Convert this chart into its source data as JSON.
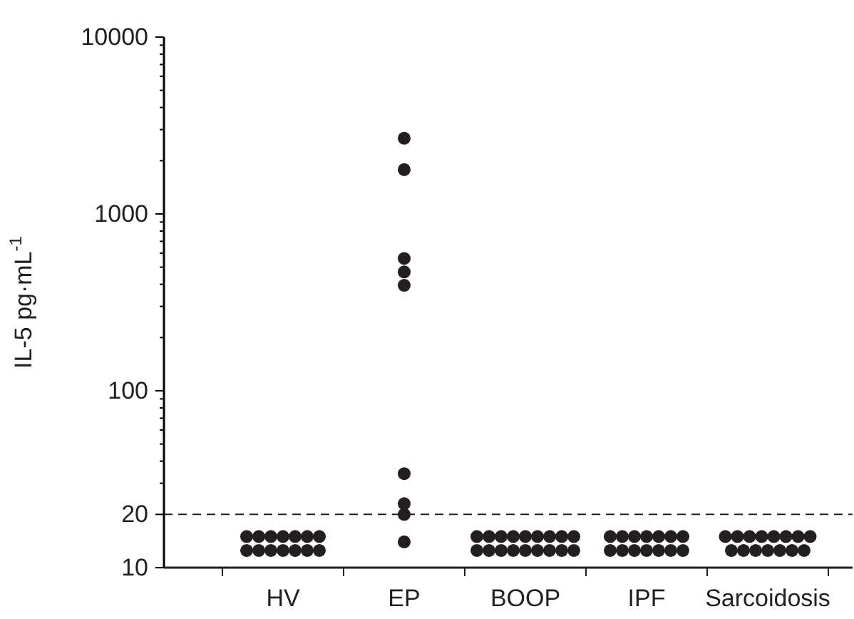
{
  "chart_data": {
    "type": "scatter",
    "ylabel": "IL-5  pg·mL$^{-1}$",
    "categories": [
      "HV",
      "EP",
      "BOOP",
      "IPF",
      "Sarcoidosis"
    ],
    "log": true,
    "ylim": [
      10,
      10000
    ],
    "yticks": [
      10,
      20,
      {
        "value": 30,
        "label": null
      },
      {
        "value": 40,
        "label": null
      },
      {
        "value": 50,
        "label": null
      },
      {
        "value": 60,
        "label": null
      },
      {
        "value": 70,
        "label": null
      },
      {
        "value": 80,
        "label": null
      },
      {
        "value": 90,
        "label": null
      },
      100,
      {
        "value": 200,
        "label": null
      },
      {
        "value": 300,
        "label": null
      },
      {
        "value": 400,
        "label": null
      },
      {
        "value": 500,
        "label": null
      },
      {
        "value": 600,
        "label": null
      },
      {
        "value": 700,
        "label": null
      },
      {
        "value": 800,
        "label": null
      },
      {
        "value": 900,
        "label": null
      },
      1000,
      {
        "value": 2000,
        "label": null
      },
      {
        "value": 3000,
        "label": null
      },
      {
        "value": 4000,
        "label": null
      },
      {
        "value": 5000,
        "label": null
      },
      {
        "value": 6000,
        "label": null
      },
      {
        "value": 7000,
        "label": null
      },
      {
        "value": 8000,
        "label": null
      },
      {
        "value": 9000,
        "label": null
      },
      10000
    ],
    "marker": "circle",
    "grid": false,
    "ref_lines": [
      {
        "axis": "y",
        "value": 20,
        "label": null,
        "color": "#231f20",
        "line_style": "dashed"
      }
    ],
    "series": [
      {
        "color": "#231f20",
        "x": [
          "HV",
          "HV",
          "HV",
          "HV",
          "HV",
          "HV",
          "HV",
          "HV",
          "HV",
          "HV",
          "HV",
          "HV",
          "HV",
          "HV",
          "EP",
          "EP",
          "EP",
          "EP",
          "EP",
          "EP",
          "EP",
          "EP",
          "EP",
          "BOOP",
          "BOOP",
          "BOOP",
          "BOOP",
          "BOOP",
          "BOOP",
          "BOOP",
          "BOOP",
          "BOOP",
          "BOOP",
          "BOOP",
          "BOOP",
          "BOOP",
          "BOOP",
          "BOOP",
          "BOOP",
          "BOOP",
          "BOOP",
          "IPF",
          "IPF",
          "IPF",
          "IPF",
          "IPF",
          "IPF",
          "IPF",
          "IPF",
          "IPF",
          "IPF",
          "IPF",
          "IPF",
          "IPF",
          "IPF",
          "Sarcoidosis",
          "Sarcoidosis",
          "Sarcoidosis",
          "Sarcoidosis",
          "Sarcoidosis",
          "Sarcoidosis",
          "Sarcoidosis",
          "Sarcoidosis",
          "Sarcoidosis",
          "Sarcoidosis",
          "Sarcoidosis",
          "Sarcoidosis",
          "Sarcoidosis",
          "Sarcoidosis",
          "Sarcoidosis"
        ],
        "values": [
          15,
          15,
          15,
          15,
          15,
          15,
          15,
          12.5,
          12.5,
          12.5,
          12.5,
          12.5,
          12.5,
          12.5,
          2680,
          1780,
          560,
          470,
          395,
          34,
          23,
          20,
          14,
          15,
          15,
          15,
          15,
          15,
          15,
          15,
          15,
          15,
          12.5,
          12.5,
          12.5,
          12.5,
          12.5,
          12.5,
          12.5,
          12.5,
          12.5,
          15,
          15,
          15,
          15,
          15,
          15,
          15,
          12.5,
          12.5,
          12.5,
          12.5,
          12.5,
          12.5,
          12.5,
          15,
          15,
          15,
          15,
          15,
          15,
          15,
          15,
          12.5,
          12.5,
          12.5,
          12.5,
          12.5,
          12.5,
          12.5
        ]
      }
    ]
  }
}
